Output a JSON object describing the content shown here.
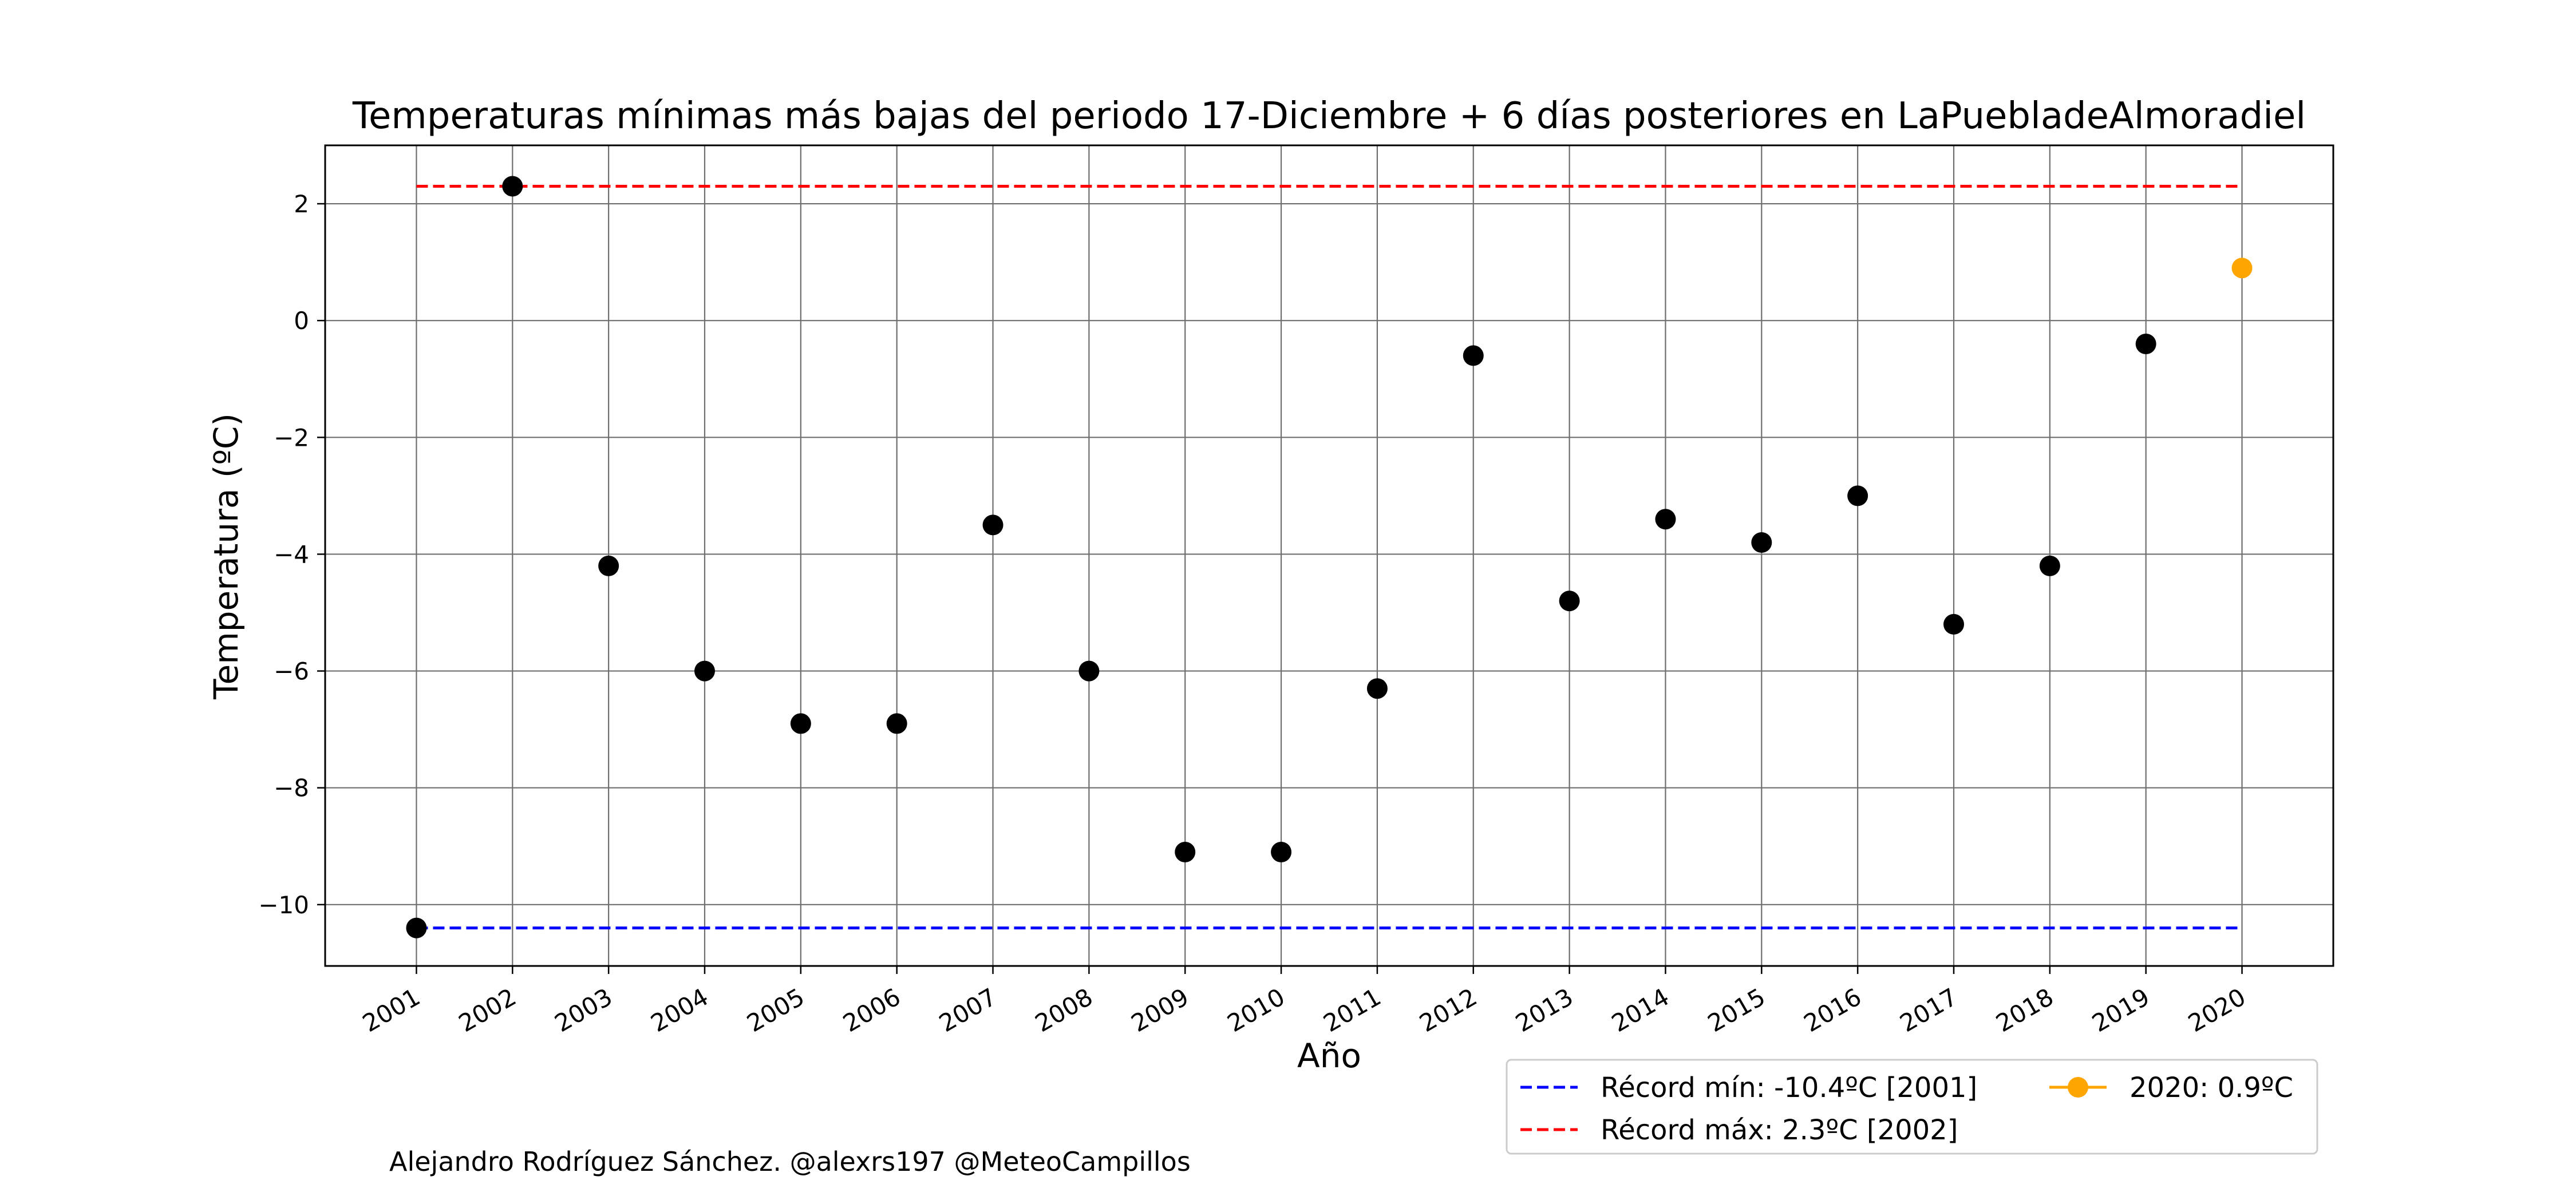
{
  "chart_data": {
    "type": "scatter",
    "title": "Temperaturas mínimas más bajas del periodo 17-Diciembre + 6 días posteriores en LaPuebladeAlmoradiel",
    "xlabel": "Año",
    "ylabel": "Temperatura (ºC)",
    "x": [
      2001,
      2002,
      2003,
      2004,
      2005,
      2006,
      2007,
      2008,
      2009,
      2010,
      2011,
      2012,
      2013,
      2014,
      2015,
      2016,
      2017,
      2018,
      2019,
      2020
    ],
    "x_tick_labels": [
      "2001",
      "2002",
      "2003",
      "2004",
      "2005",
      "2006",
      "2007",
      "2008",
      "2009",
      "2010",
      "2011",
      "2012",
      "2013",
      "2014",
      "2015",
      "2016",
      "2017",
      "2018",
      "2019",
      "2020"
    ],
    "series": [
      {
        "values": [
          -10.4,
          2.3,
          -4.2,
          -6.0,
          -6.9,
          -6.9,
          -3.5,
          -6.0,
          -9.1,
          -9.1,
          -6.3,
          -0.6,
          -4.8,
          -3.4,
          -3.8,
          -3.0,
          -5.2,
          -4.2,
          -0.4,
          null
        ],
        "color": "#000000",
        "marker": "circle"
      },
      {
        "name": "2020: 0.9ºC",
        "values": [
          null,
          null,
          null,
          null,
          null,
          null,
          null,
          null,
          null,
          null,
          null,
          null,
          null,
          null,
          null,
          null,
          null,
          null,
          null,
          0.9
        ],
        "color": "#FFA500",
        "marker": "circle"
      }
    ],
    "reference_lines": [
      {
        "name": "Récord mín: -10.4ºC [2001]",
        "y": -10.4,
        "x_from": 2001,
        "x_to": 2020,
        "color": "#0000FF",
        "style": "dashed"
      },
      {
        "name": "Récord máx: 2.3ºC [2002]",
        "y": 2.3,
        "x_from": 2001,
        "x_to": 2020,
        "color": "#FF0000",
        "style": "dashed"
      }
    ],
    "y_ticks": [
      -10,
      -8,
      -6,
      -4,
      -2,
      0,
      2
    ],
    "y_tick_labels": [
      "−10",
      "−8",
      "−6",
      "−4",
      "−2",
      "0",
      "2"
    ],
    "xlim": [
      2000.05,
      2020.95
    ],
    "ylim": [
      -11.05,
      3.0
    ],
    "grid": true,
    "legend_placement": "bottom-right, below the axes",
    "legend": [
      {
        "label": "Récord mín: -10.4ºC [2001]",
        "color": "#0000FF",
        "symbol": "dashed-line"
      },
      {
        "label": "Récord máx: 2.3ºC [2002]",
        "color": "#FF0000",
        "symbol": "dashed-line"
      },
      {
        "label": "2020: 0.9ºC",
        "color": "#FFA500",
        "symbol": "line-marker"
      }
    ],
    "footnote": "Alejandro Rodríguez Sánchez. @alexrs197 @MeteoCampillos"
  }
}
